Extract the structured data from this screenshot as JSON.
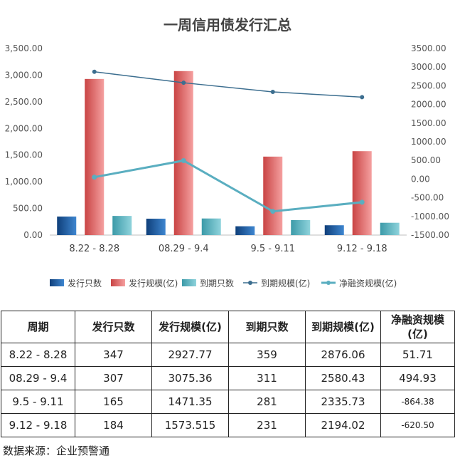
{
  "chart_data": {
    "type": "bar",
    "title": "一周信用债发行汇总",
    "categories": [
      "8.22 - 8.28",
      "08.29 - 9.4",
      "9.5 - 9.11",
      "9.12 - 9.18"
    ],
    "left_axis": {
      "min": 0,
      "max": 3500,
      "step": 500,
      "ticks": [
        "0.00",
        "500.00",
        "1,000.00",
        "1,500.00",
        "2,000.00",
        "2,500.00",
        "3,000.00",
        "3,500.00"
      ]
    },
    "right_axis": {
      "min": -1500,
      "max": 3500,
      "step": 500,
      "ticks": [
        "-1500.00",
        "-1000.00",
        "-500.00",
        "0.00",
        "500.00",
        "1000.00",
        "1500.00",
        "2000.00",
        "2500.00",
        "3000.00",
        "3500.00"
      ]
    },
    "series": [
      {
        "name": "发行只数",
        "type": "bar",
        "axis": "left",
        "color": "#1f5fa8",
        "values": [
          347,
          307,
          165,
          184
        ]
      },
      {
        "name": "发行规模(亿)",
        "type": "bar",
        "axis": "left",
        "color": "#e06666",
        "values": [
          2927.77,
          3075.36,
          1471.35,
          1573.515
        ]
      },
      {
        "name": "到期只数",
        "type": "bar",
        "axis": "left",
        "color": "#5bb8c4",
        "values": [
          359,
          311,
          281,
          231
        ]
      },
      {
        "name": "到期规模(亿)",
        "type": "line",
        "axis": "right",
        "color": "#3c6e8f",
        "values": [
          2876.06,
          2580.43,
          2335.73,
          2194.02
        ]
      },
      {
        "name": "净融资规模(亿)",
        "type": "line",
        "axis": "right",
        "color": "#5aaec0",
        "values": [
          51.71,
          494.93,
          -864.38,
          -620.5
        ]
      }
    ],
    "legend_position": "bottom"
  },
  "table": {
    "headers": [
      "周期",
      "发行只数",
      "发行规模(亿)",
      "到期只数",
      "到期规模(亿)",
      "净融资规模(亿)"
    ],
    "rows": [
      [
        "8.22 - 8.28",
        "347",
        "2927.77",
        "359",
        "2876.06",
        "51.71"
      ],
      [
        "08.29 - 9.4",
        "307",
        "3075.36",
        "311",
        "2580.43",
        "494.93"
      ],
      [
        "9.5 - 9.11",
        "165",
        "1471.35",
        "281",
        "2335.73",
        "-864.38"
      ],
      [
        "9.12 - 9.18",
        "184",
        "1573.515",
        "231",
        "2194.02",
        "-620.50"
      ]
    ]
  },
  "source_note": "数据来源：企业预警通"
}
